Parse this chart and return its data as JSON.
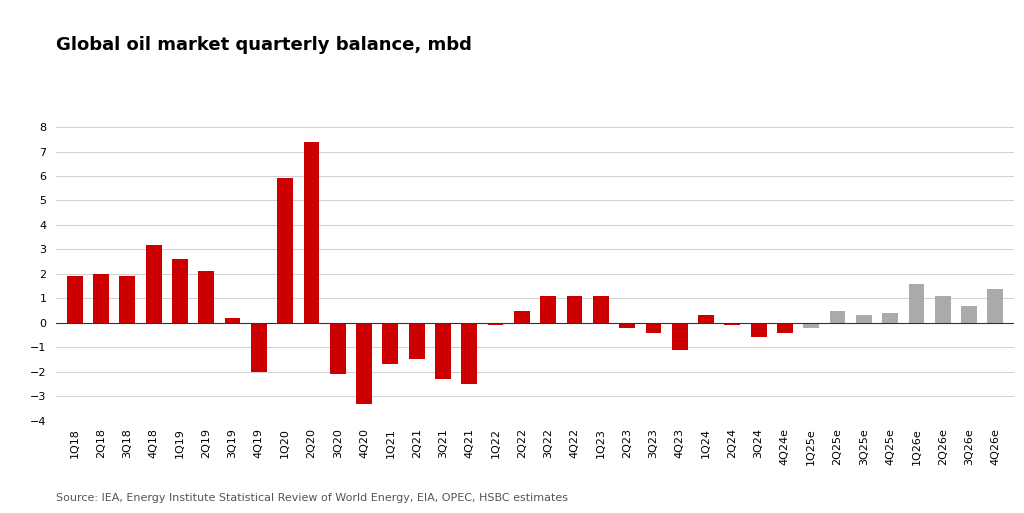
{
  "title": "Global oil market quarterly balance, mbd",
  "source": "Source: IEA, Energy Institute Statistical Review of World Energy, EIA, OPEC, HSBC estimates",
  "categories": [
    "1Q18",
    "2Q18",
    "3Q18",
    "4Q18",
    "1Q19",
    "2Q19",
    "3Q19",
    "4Q19",
    "1Q20",
    "2Q20",
    "3Q20",
    "4Q20",
    "1Q21",
    "2Q21",
    "3Q21",
    "4Q21",
    "1Q22",
    "2Q22",
    "3Q22",
    "4Q22",
    "1Q23",
    "2Q23",
    "3Q23",
    "4Q23",
    "1Q24",
    "2Q24",
    "3Q24",
    "4Q24e",
    "1Q25e",
    "2Q25e",
    "3Q25e",
    "4Q25e",
    "1Q26e",
    "2Q26e",
    "3Q26e",
    "4Q26e"
  ],
  "values": [
    1.9,
    2.0,
    1.9,
    3.2,
    2.6,
    2.1,
    0.2,
    -2.0,
    5.9,
    7.4,
    -2.1,
    -3.3,
    -1.7,
    -1.5,
    -2.3,
    -2.5,
    -0.1,
    0.5,
    1.1,
    1.1,
    1.1,
    -0.2,
    -0.4,
    -1.1,
    0.3,
    -0.1,
    -0.6,
    -0.4,
    -0.2,
    0.5,
    0.3,
    0.4,
    1.6,
    1.1,
    0.7,
    1.4
  ],
  "colors": [
    "#cc0000",
    "#cc0000",
    "#cc0000",
    "#cc0000",
    "#cc0000",
    "#cc0000",
    "#cc0000",
    "#cc0000",
    "#cc0000",
    "#cc0000",
    "#cc0000",
    "#cc0000",
    "#cc0000",
    "#cc0000",
    "#cc0000",
    "#cc0000",
    "#cc0000",
    "#cc0000",
    "#cc0000",
    "#cc0000",
    "#cc0000",
    "#cc0000",
    "#cc0000",
    "#cc0000",
    "#cc0000",
    "#cc0000",
    "#cc0000",
    "#cc0000",
    "#aaaaaa",
    "#aaaaaa",
    "#aaaaaa",
    "#aaaaaa",
    "#aaaaaa",
    "#aaaaaa",
    "#aaaaaa",
    "#aaaaaa"
  ],
  "ylim": [
    -4,
    9
  ],
  "yticks": [
    -4,
    -3,
    -2,
    -1,
    0,
    1,
    2,
    3,
    4,
    5,
    6,
    7,
    8
  ],
  "background_color": "#ffffff",
  "grid_color": "#d0d0d0",
  "title_fontsize": 13,
  "tick_fontsize": 8,
  "source_fontsize": 8,
  "bar_width": 0.6
}
